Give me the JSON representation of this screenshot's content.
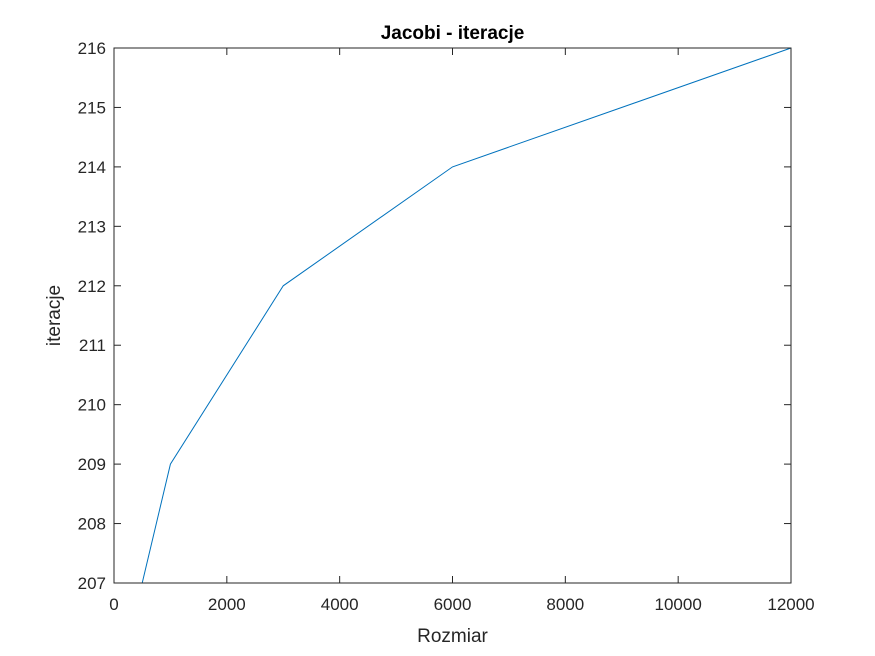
{
  "chart_data": {
    "type": "line",
    "title": "Jacobi - iteracje",
    "xlabel": "Rozmiar",
    "ylabel": "iteracje",
    "xlim": [
      0,
      12000
    ],
    "ylim": [
      207,
      216
    ],
    "xticks": [
      0,
      2000,
      4000,
      6000,
      8000,
      10000,
      12000
    ],
    "yticks": [
      207,
      208,
      209,
      210,
      211,
      212,
      213,
      214,
      215,
      216
    ],
    "grid": false,
    "series": [
      {
        "color": "#0072bd",
        "x": [
          500,
          1000,
          3000,
          6000,
          12000
        ],
        "y": [
          207,
          209,
          212,
          214,
          216
        ]
      }
    ]
  }
}
